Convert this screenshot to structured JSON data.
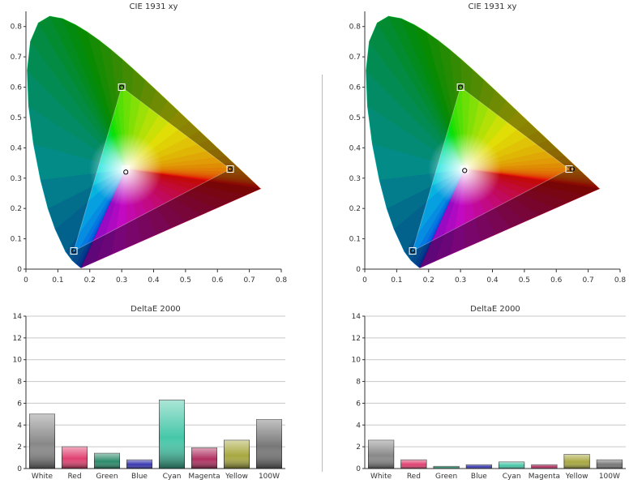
{
  "colors": {
    "white": "#ffffff",
    "red": "#e04070",
    "green": "#2a8a6a",
    "blue": "#3838b0",
    "cyan": "#46c7a8",
    "magenta": "#b03060",
    "yellow": "#a8a840",
    "w100": "#909090",
    "axis": "#333333",
    "grid": "#c8c8c8",
    "text": "#333333"
  },
  "chart_data": [
    {
      "type": "scatter",
      "title": "CIE 1931 xy",
      "xlabel": "",
      "ylabel": "",
      "xlim": [
        0,
        0.8
      ],
      "ylim": [
        0,
        0.85
      ],
      "xticks": [
        "0",
        "0.1",
        "0.2",
        "0.3",
        "0.4",
        "0.5",
        "0.6",
        "0.7",
        "0.8"
      ],
      "yticks": [
        "0",
        "0.1",
        "0.2",
        "0.3",
        "0.4",
        "0.5",
        "0.6",
        "0.7",
        "0.8"
      ],
      "gamut": [
        [
          0.64,
          0.33
        ],
        [
          0.3,
          0.6
        ],
        [
          0.15,
          0.06
        ]
      ],
      "targets": [
        [
          0.64,
          0.33
        ],
        [
          0.3,
          0.6
        ],
        [
          0.15,
          0.06
        ],
        [
          0.3127,
          0.329
        ]
      ],
      "points": [
        [
          0.64,
          0.33
        ],
        [
          0.3,
          0.6
        ],
        [
          0.15,
          0.06
        ],
        [
          0.313,
          0.32
        ]
      ],
      "grid": false
    },
    {
      "type": "scatter",
      "title": "CIE 1931 xy",
      "xlabel": "",
      "ylabel": "",
      "xlim": [
        0,
        0.8
      ],
      "ylim": [
        0,
        0.85
      ],
      "xticks": [
        "0",
        "0.1",
        "0.2",
        "0.3",
        "0.4",
        "0.5",
        "0.6",
        "0.7",
        "0.8"
      ],
      "yticks": [
        "0",
        "0.1",
        "0.2",
        "0.3",
        "0.4",
        "0.5",
        "0.6",
        "0.7",
        "0.8"
      ],
      "gamut": [
        [
          0.64,
          0.33
        ],
        [
          0.3,
          0.6
        ],
        [
          0.15,
          0.06
        ]
      ],
      "targets": [
        [
          0.64,
          0.33
        ],
        [
          0.3,
          0.6
        ],
        [
          0.15,
          0.06
        ],
        [
          0.3127,
          0.329
        ]
      ],
      "points": [
        [
          0.65,
          0.33
        ],
        [
          0.3,
          0.6
        ],
        [
          0.15,
          0.06
        ],
        [
          0.313,
          0.325
        ]
      ],
      "grid": false
    },
    {
      "type": "bar",
      "title": "DeltaE 2000",
      "categories": [
        "White",
        "Red",
        "Green",
        "Blue",
        "Cyan",
        "Magenta",
        "Yellow",
        "100W"
      ],
      "values": [
        5.0,
        2.0,
        1.4,
        0.8,
        6.3,
        1.9,
        2.6,
        4.5
      ],
      "ylim": [
        0,
        14
      ],
      "yticks": [
        "0",
        "2",
        "4",
        "6",
        "8",
        "10",
        "12",
        "14"
      ],
      "grid": true
    },
    {
      "type": "bar",
      "title": "DeltaE 2000",
      "categories": [
        "White",
        "Red",
        "Green",
        "Blue",
        "Cyan",
        "Magenta",
        "Yellow",
        "100W"
      ],
      "values": [
        2.6,
        0.8,
        0.2,
        0.35,
        0.6,
        0.35,
        1.3,
        0.8
      ],
      "ylim": [
        0,
        14
      ],
      "yticks": [
        "0",
        "2",
        "4",
        "6",
        "8",
        "10",
        "12",
        "14"
      ],
      "grid": true
    }
  ]
}
